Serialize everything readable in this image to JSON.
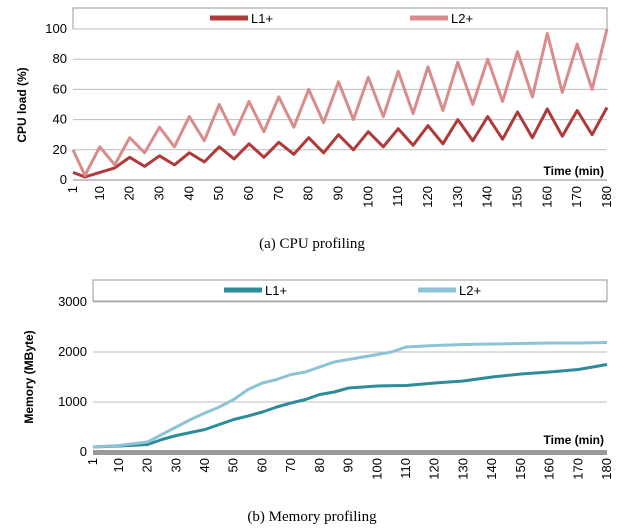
{
  "chart_data": [
    {
      "type": "line",
      "caption": "(a) CPU profiling",
      "ylabel": "CPU load (%)",
      "xlabel": "Time (min)",
      "ylim": [
        0,
        100
      ],
      "yticks": [
        0,
        20,
        40,
        60,
        80,
        100
      ],
      "xlim": [
        1,
        180
      ],
      "xticks": [
        "1",
        "10",
        "20",
        "30",
        "40",
        "50",
        "60",
        "70",
        "80",
        "90",
        "100",
        "110",
        "120",
        "130",
        "140",
        "150",
        "160",
        "170",
        "180"
      ],
      "legend_position": "top",
      "grid": "horizontal",
      "series": [
        {
          "name": "L1+",
          "color": "#b03a3a",
          "x": [
            1,
            5,
            10,
            15,
            20,
            25,
            30,
            35,
            40,
            45,
            50,
            55,
            60,
            65,
            70,
            75,
            80,
            85,
            90,
            95,
            100,
            105,
            110,
            115,
            120,
            125,
            130,
            135,
            140,
            145,
            150,
            155,
            160,
            165,
            170,
            175,
            180
          ],
          "y": [
            5,
            2,
            5,
            8,
            15,
            9,
            16,
            10,
            18,
            12,
            22,
            14,
            24,
            15,
            25,
            17,
            28,
            18,
            30,
            20,
            32,
            22,
            34,
            23,
            36,
            24,
            40,
            26,
            42,
            27,
            45,
            28,
            47,
            29,
            46,
            30,
            48
          ]
        },
        {
          "name": "L2+",
          "color": "#d98c8c",
          "x": [
            1,
            5,
            10,
            15,
            20,
            25,
            30,
            35,
            40,
            45,
            50,
            55,
            60,
            65,
            70,
            75,
            80,
            85,
            90,
            95,
            100,
            105,
            110,
            115,
            120,
            125,
            130,
            135,
            140,
            145,
            150,
            155,
            160,
            165,
            170,
            175,
            180
          ],
          "y": [
            20,
            3,
            22,
            10,
            28,
            18,
            35,
            22,
            42,
            26,
            50,
            30,
            52,
            32,
            55,
            35,
            60,
            38,
            65,
            40,
            68,
            42,
            72,
            44,
            75,
            46,
            78,
            50,
            80,
            52,
            85,
            55,
            97,
            58,
            90,
            60,
            100
          ]
        }
      ]
    },
    {
      "type": "line",
      "caption": "(b) Memory profiling",
      "ylabel": "Memory (MByte)",
      "xlabel": "Time (min)",
      "ylim": [
        0,
        3000
      ],
      "yticks": [
        0,
        1000,
        2000,
        3000
      ],
      "xlim": [
        1,
        180
      ],
      "xticks": [
        "1",
        "10",
        "20",
        "30",
        "40",
        "50",
        "60",
        "70",
        "80",
        "90",
        "100",
        "110",
        "120",
        "130",
        "140",
        "150",
        "160",
        "170",
        "180"
      ],
      "legend_position": "top",
      "grid": "horizontal",
      "series": [
        {
          "name": "L1+",
          "color": "#2e8b9a",
          "x": [
            1,
            10,
            20,
            25,
            30,
            35,
            40,
            45,
            50,
            55,
            60,
            65,
            70,
            75,
            80,
            85,
            90,
            95,
            100,
            110,
            120,
            130,
            140,
            150,
            160,
            170,
            180
          ],
          "y": [
            100,
            120,
            150,
            250,
            330,
            390,
            450,
            550,
            650,
            720,
            800,
            900,
            980,
            1050,
            1150,
            1200,
            1280,
            1300,
            1320,
            1330,
            1380,
            1420,
            1500,
            1560,
            1600,
            1650,
            1750
          ]
        },
        {
          "name": "L2+",
          "color": "#8cc3d6",
          "x": [
            1,
            10,
            20,
            25,
            30,
            35,
            40,
            45,
            50,
            55,
            60,
            65,
            70,
            75,
            80,
            85,
            90,
            95,
            100,
            105,
            110,
            120,
            130,
            140,
            150,
            160,
            170,
            180
          ],
          "y": [
            100,
            130,
            200,
            350,
            500,
            650,
            780,
            900,
            1050,
            1250,
            1380,
            1450,
            1550,
            1600,
            1700,
            1800,
            1850,
            1900,
            1950,
            2000,
            2100,
            2130,
            2150,
            2160,
            2170,
            2180,
            2180,
            2190
          ]
        }
      ]
    }
  ]
}
